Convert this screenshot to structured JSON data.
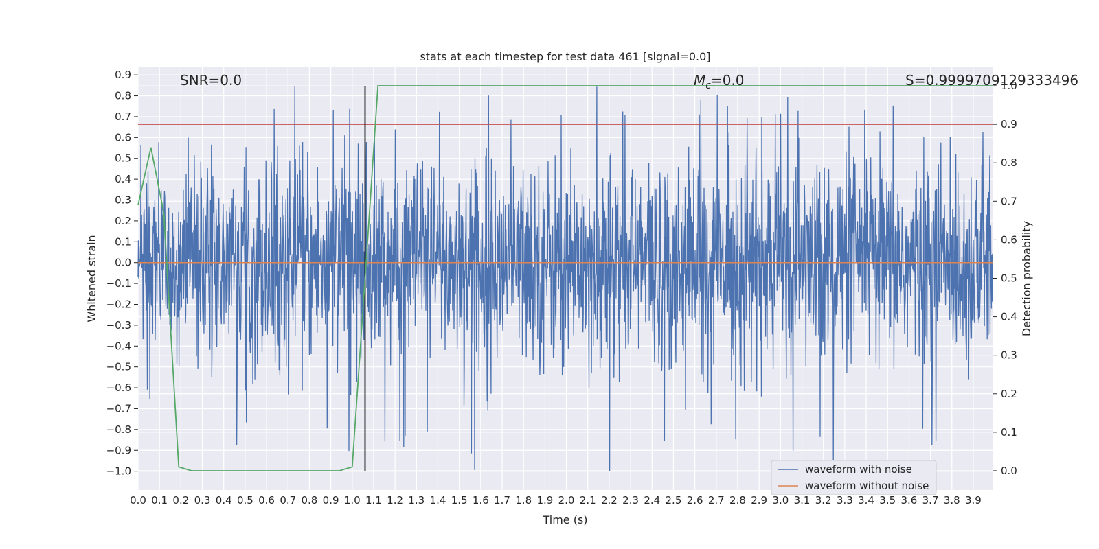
{
  "chart_data": {
    "type": "line",
    "title": "stats at each timestep for test data 461 [signal=0.0]",
    "xlabel": "Time (s)",
    "ylabel_left": "Whitened strain",
    "ylabel_right": "Detection probability",
    "xlim": [
      0.0,
      3.99
    ],
    "ylim_left": [
      -1.09,
      0.94
    ],
    "ylim_right": [
      -0.05,
      1.05
    ],
    "x_ticks": [
      "0.0",
      "0.1",
      "0.2",
      "0.3",
      "0.4",
      "0.5",
      "0.6",
      "0.7",
      "0.8",
      "0.9",
      "1.0",
      "1.1",
      "1.2",
      "1.3",
      "1.4",
      "1.5",
      "1.6",
      "1.7",
      "1.8",
      "1.9",
      "2.0",
      "2.1",
      "2.2",
      "2.3",
      "2.4",
      "2.5",
      "2.6",
      "2.7",
      "2.8",
      "2.9",
      "3.0",
      "3.1",
      "3.2",
      "3.3",
      "3.4",
      "3.5",
      "3.6",
      "3.7",
      "3.8",
      "3.9"
    ],
    "y_ticks_left": [
      "0.9",
      "0.8",
      "0.7",
      "0.6",
      "0.5",
      "0.4",
      "0.3",
      "0.2",
      "0.1",
      "0.0",
      "−0.1",
      "−0.2",
      "−0.3",
      "−0.4",
      "−0.5",
      "−0.6",
      "−0.7",
      "−0.8",
      "−0.9",
      "−1.0"
    ],
    "y_ticks_right": [
      "1.0",
      "0.9",
      "0.8",
      "0.7",
      "0.6",
      "0.5",
      "0.4",
      "0.3",
      "0.2",
      "0.1",
      "0.0"
    ],
    "annotations": {
      "snr": "SNR=0.0",
      "mc_symbol": "M",
      "mc_sub": "c",
      "mc_value": "=0.0",
      "s": "S=0.9999709129333496"
    },
    "threshold_line": {
      "axis": "right",
      "value": 0.9,
      "color": "#c44e52"
    },
    "event_line": {
      "x": 1.06,
      "color": "#000000"
    },
    "grid": true,
    "legend_position": "lower-right",
    "series": [
      {
        "name": "waveform with noise",
        "color": "#4c72b0",
        "axis": "left",
        "kind": "noise",
        "amplitude_range": [
          -1.0,
          0.85
        ]
      },
      {
        "name": "waveform without noise",
        "color": "#dd8452",
        "axis": "left",
        "x": [
          0.0,
          3.99
        ],
        "y": [
          0.0,
          0.0
        ]
      },
      {
        "axis": "right",
        "color": "#55a868",
        "x": [
          0.0,
          0.06,
          0.12,
          0.19,
          0.25,
          0.31,
          0.38,
          0.44,
          0.5,
          0.56,
          0.62,
          0.69,
          0.75,
          0.81,
          0.87,
          0.94,
          1.0,
          1.06,
          1.12,
          1.5,
          2.0,
          2.5,
          3.0,
          3.5,
          3.99
        ],
        "y": [
          0.69,
          0.84,
          0.67,
          0.01,
          0.0,
          0.0,
          0.0,
          0.0,
          0.0,
          0.0,
          0.0,
          0.0,
          0.0,
          0.0,
          0.0,
          0.0,
          0.01,
          0.5,
          1.0,
          1.0,
          1.0,
          1.0,
          1.0,
          1.0,
          1.0
        ]
      }
    ]
  }
}
